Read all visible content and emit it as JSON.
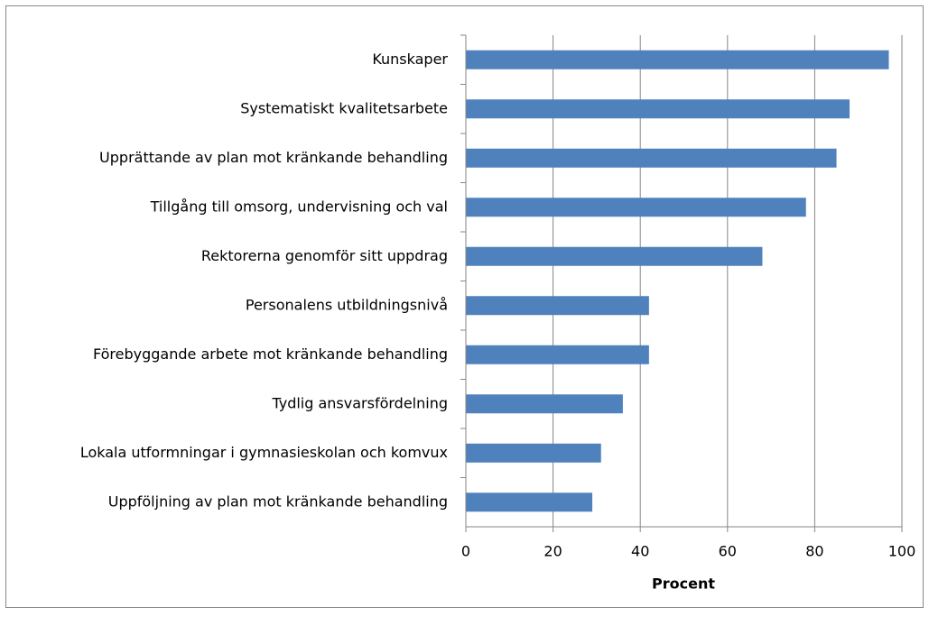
{
  "chart_data": {
    "type": "bar",
    "orientation": "horizontal",
    "categories": [
      "Kunskaper",
      "Systematiskt kvalitetsarbete",
      "Upprättande av plan mot kränkande behandling",
      "Tillgång till omsorg, undervisning och val",
      "Rektorerna genomför sitt uppdrag",
      "Personalens utbildningsnivå",
      "Förebyggande arbete mot kränkande behandling",
      "Tydlig ansvarsfördelning",
      "Lokala utformningar i gymnasieskolan och komvux",
      "Uppföljning av plan mot kränkande behandling"
    ],
    "values": [
      97,
      88,
      85,
      78,
      68,
      42,
      42,
      36,
      31,
      29
    ],
    "color": "#4f81bd",
    "xlabel": "Procent",
    "xlim": [
      0,
      100
    ],
    "xticks": [
      0,
      20,
      40,
      60,
      80,
      100
    ],
    "grid": true
  }
}
